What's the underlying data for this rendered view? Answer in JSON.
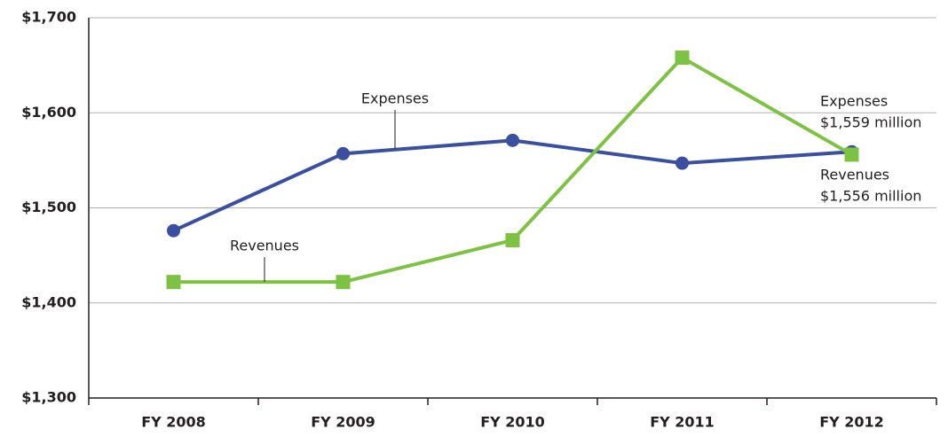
{
  "chart_data": {
    "type": "line",
    "categories": [
      "FY 2008",
      "FY 2009",
      "FY 2010",
      "FY 2011",
      "FY 2012"
    ],
    "series": [
      {
        "name": "Expenses",
        "color": "#3a4f9f",
        "marker": "circle",
        "values": [
          1476,
          1557,
          1571,
          1547,
          1559
        ]
      },
      {
        "name": "Revenues",
        "color": "#7dc242",
        "marker": "square",
        "values": [
          1422,
          1422,
          1466,
          1658,
          1556
        ]
      }
    ],
    "ylim": [
      1300,
      1700
    ],
    "yticks": [
      {
        "value": 1300,
        "label": "$1,300"
      },
      {
        "value": 1400,
        "label": "$1,400"
      },
      {
        "value": 1500,
        "label": "$1,500"
      },
      {
        "value": 1600,
        "label": "$1,600"
      },
      {
        "value": 1700,
        "label": "$1,700"
      }
    ],
    "grid": true,
    "annotations": [
      "Expenses",
      "Revenues",
      "Expenses",
      "$1,559 million",
      "Revenues",
      "$1,556 million"
    ]
  }
}
